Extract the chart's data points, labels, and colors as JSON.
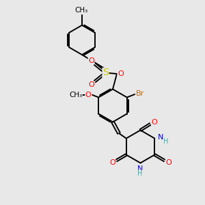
{
  "background_color": "#e8e8e8",
  "bond_color": "#000000",
  "atom_colors": {
    "O": "#ff0000",
    "N": "#0000cc",
    "S": "#cccc00",
    "Br": "#cc6600",
    "H": "#44aaaa",
    "C": "#000000"
  },
  "bond_width": 1.4,
  "font_size": 8,
  "fig_size": [
    3.0,
    3.0
  ],
  "dpi": 100
}
